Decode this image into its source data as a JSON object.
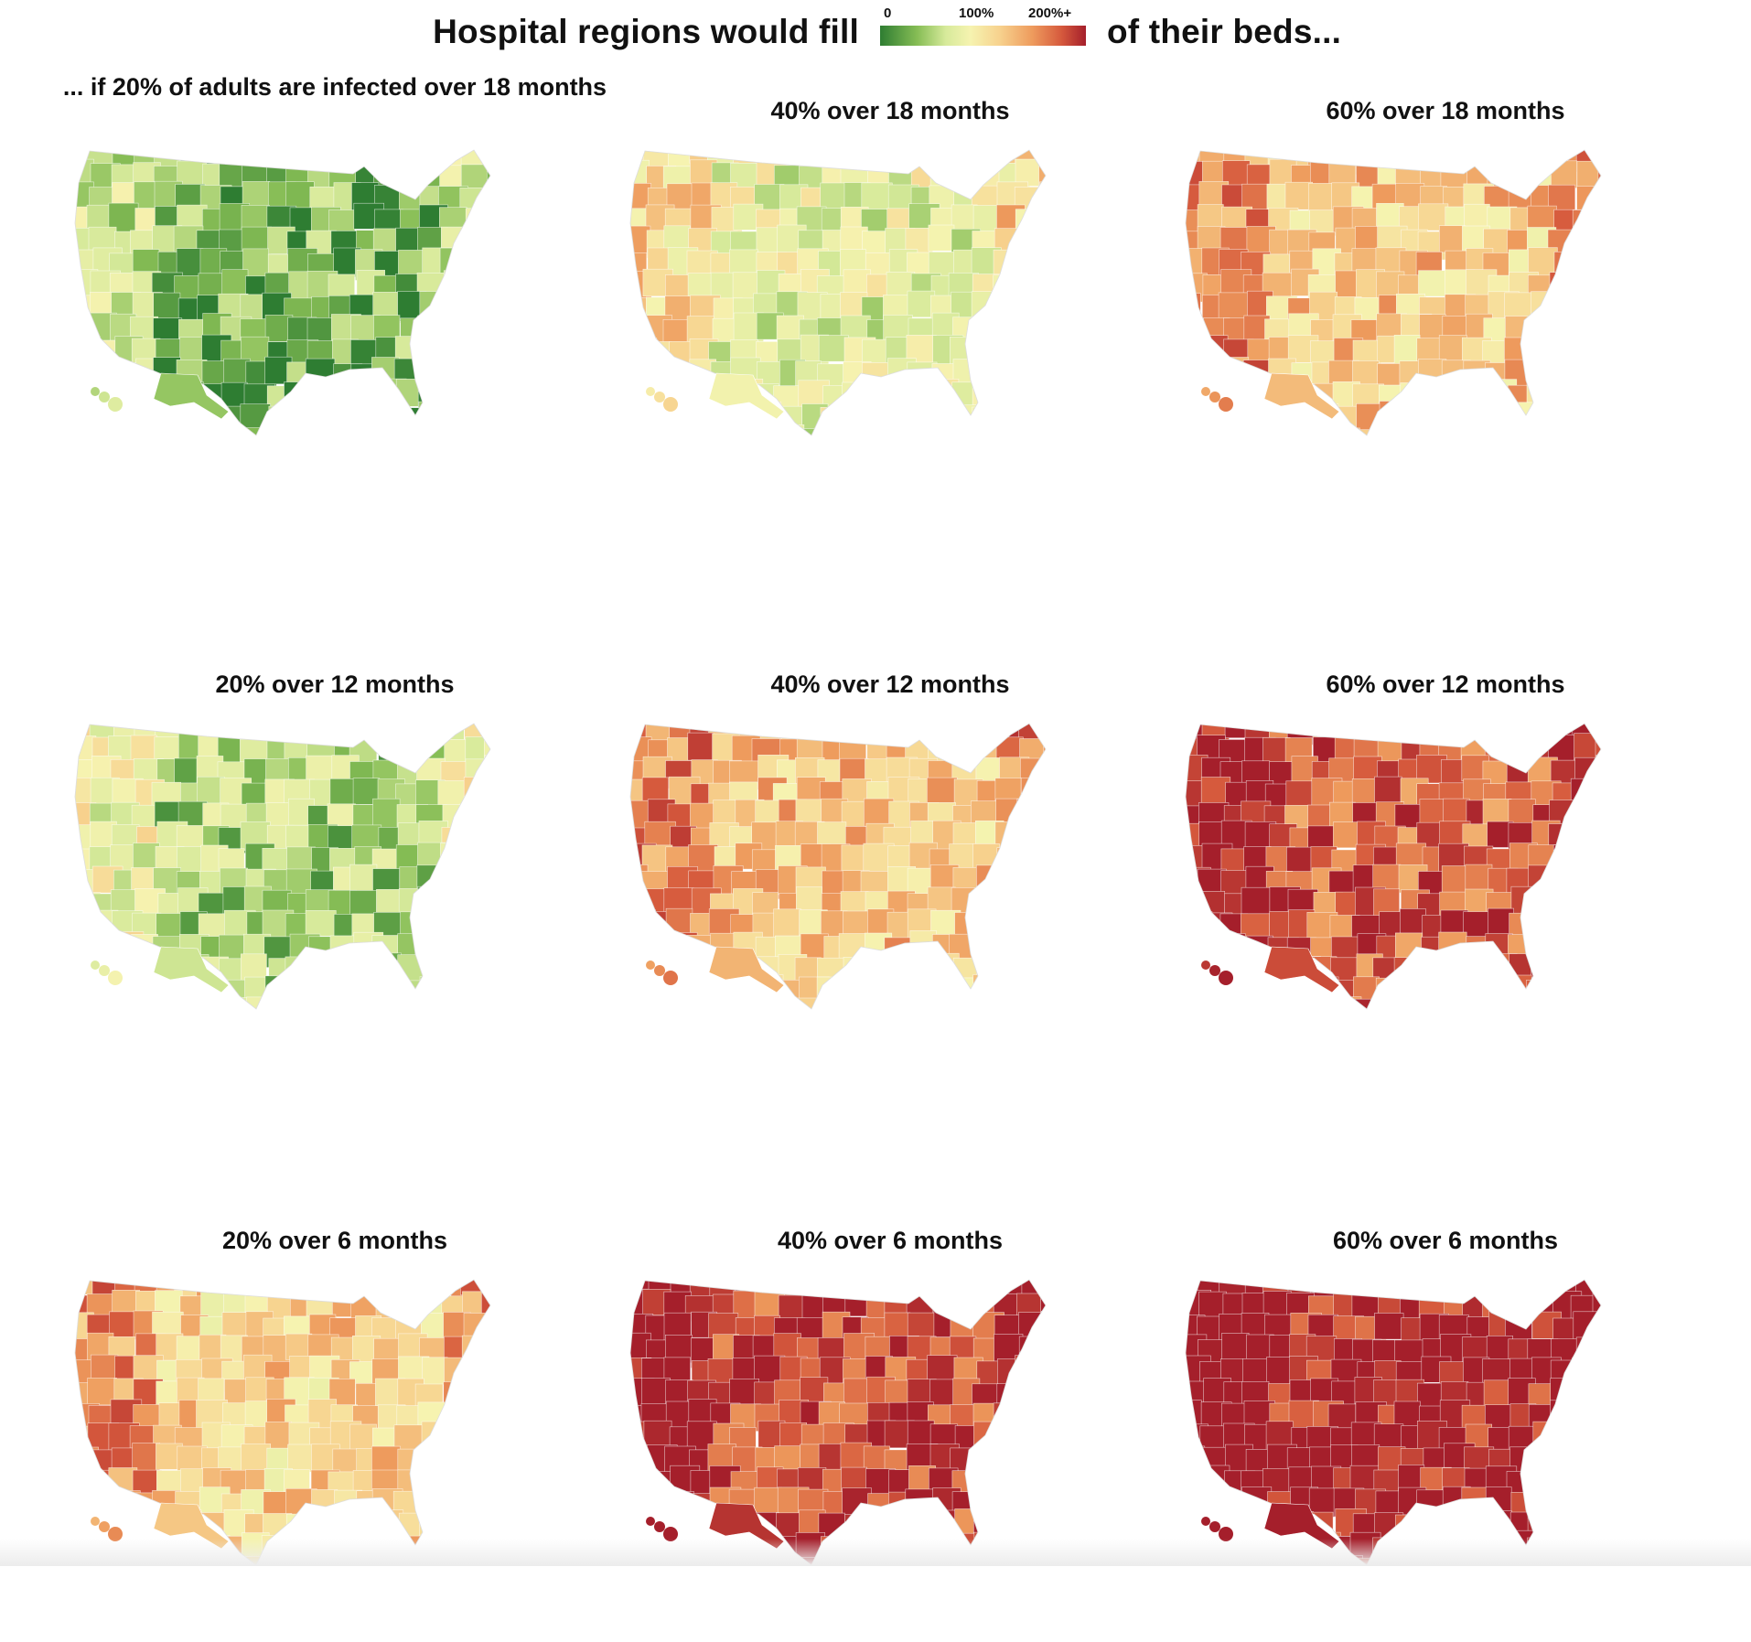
{
  "header": {
    "title_left": "Hospital regions would fill",
    "title_right": "of their beds...",
    "legend_ticks": [
      "0",
      "100%",
      "200%+"
    ],
    "legend_colors": [
      "#2e7d32",
      "#86bd55",
      "#d7ea9b",
      "#f6f3b0",
      "#f7d28e",
      "#ee9b5d",
      "#d65a3d",
      "#a51f2b"
    ]
  },
  "panels": [
    {
      "title": "... if 20% of adults are infected over 18 months",
      "level": 0.12
    },
    {
      "title": "40% over 18 months",
      "level": 0.36
    },
    {
      "title": "60% over 18 months",
      "level": 0.58
    },
    {
      "title": "20% over 12 months",
      "level": 0.22
    },
    {
      "title": "40% over 12 months",
      "level": 0.6
    },
    {
      "title": "60% over 12 months",
      "level": 0.84
    },
    {
      "title": "20% over 6 months",
      "level": 0.55
    },
    {
      "title": "40% over 6 months",
      "level": 0.9
    },
    {
      "title": "60% over 6 months",
      "level": 0.98
    }
  ]
}
